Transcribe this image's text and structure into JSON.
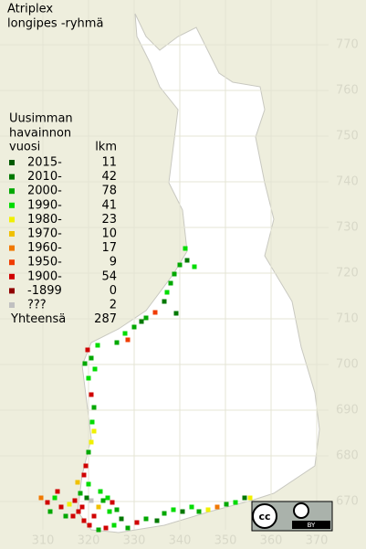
{
  "title": [
    "Atriplex",
    "longipes -ryhmä"
  ],
  "legend": {
    "header": [
      "Uusimman",
      "havainnon"
    ],
    "col_year": "vuosi",
    "col_count": "lkm",
    "rows": [
      {
        "label": "2015-",
        "count": 11,
        "color": "#005a00"
      },
      {
        "label": "2010-",
        "count": 42,
        "color": "#007800"
      },
      {
        "label": "2000-",
        "count": 78,
        "color": "#00a800"
      },
      {
        "label": "1990-",
        "count": 41,
        "color": "#00dc00"
      },
      {
        "label": "1980-",
        "count": 23,
        "color": "#f0f000"
      },
      {
        "label": "1970-",
        "count": 10,
        "color": "#f0c000"
      },
      {
        "label": "1960-",
        "count": 17,
        "color": "#f07800"
      },
      {
        "label": "1950-",
        "count": 9,
        "color": "#f03c00"
      },
      {
        "label": "1900-",
        "count": 54,
        "color": "#d00000"
      },
      {
        "label": "-1899",
        "count": 0,
        "color": "#900000"
      },
      {
        "label": "???",
        "count": 2,
        "color": "#c0c0c0"
      }
    ],
    "total_label": "Yhteensä",
    "total": 287
  },
  "y_axis_labels": [
    "770",
    "760",
    "750",
    "740",
    "730",
    "720",
    "710",
    "700",
    "690",
    "680",
    "670"
  ],
  "x_axis_labels": [
    "310",
    "320",
    "330",
    "340",
    "350",
    "360",
    "370"
  ],
  "license": [
    "cc",
    "BY"
  ]
}
